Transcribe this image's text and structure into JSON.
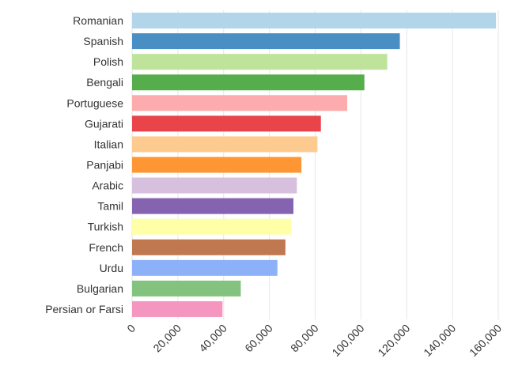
{
  "chart_data": {
    "type": "bar",
    "orientation": "horizontal",
    "title": "",
    "xlabel": "",
    "ylabel": "",
    "categories": [
      "Romanian",
      "Spanish",
      "Polish",
      "Bengali",
      "Portuguese",
      "Gujarati",
      "Italian",
      "Panjabi",
      "Arabic",
      "Tamil",
      "Turkish",
      "French",
      "Urdu",
      "Bulgarian",
      "Persian or Farsi"
    ],
    "values": [
      159000,
      117000,
      111500,
      101500,
      94000,
      82500,
      81000,
      74000,
      72000,
      70500,
      69500,
      67000,
      63500,
      47500,
      39500
    ],
    "colors": [
      "#b3d5ea",
      "#4a8fc4",
      "#c0e39c",
      "#55ad4c",
      "#fcacac",
      "#e8444a",
      "#fdcb8f",
      "#fe9733",
      "#d6c0de",
      "#8663b0",
      "#ffffa8",
      "#c07851",
      "#8cb1f8",
      "#84c37f",
      "#f596c1"
    ],
    "xlim": [
      0,
      160000
    ],
    "xticks": [
      0,
      20000,
      40000,
      60000,
      80000,
      100000,
      120000,
      140000,
      160000
    ],
    "xtick_labels": [
      "0",
      "20,000",
      "40,000",
      "60,000",
      "80,000",
      "100,000",
      "120,000",
      "140,000",
      "160,000"
    ],
    "grid": true,
    "legend": "none"
  }
}
